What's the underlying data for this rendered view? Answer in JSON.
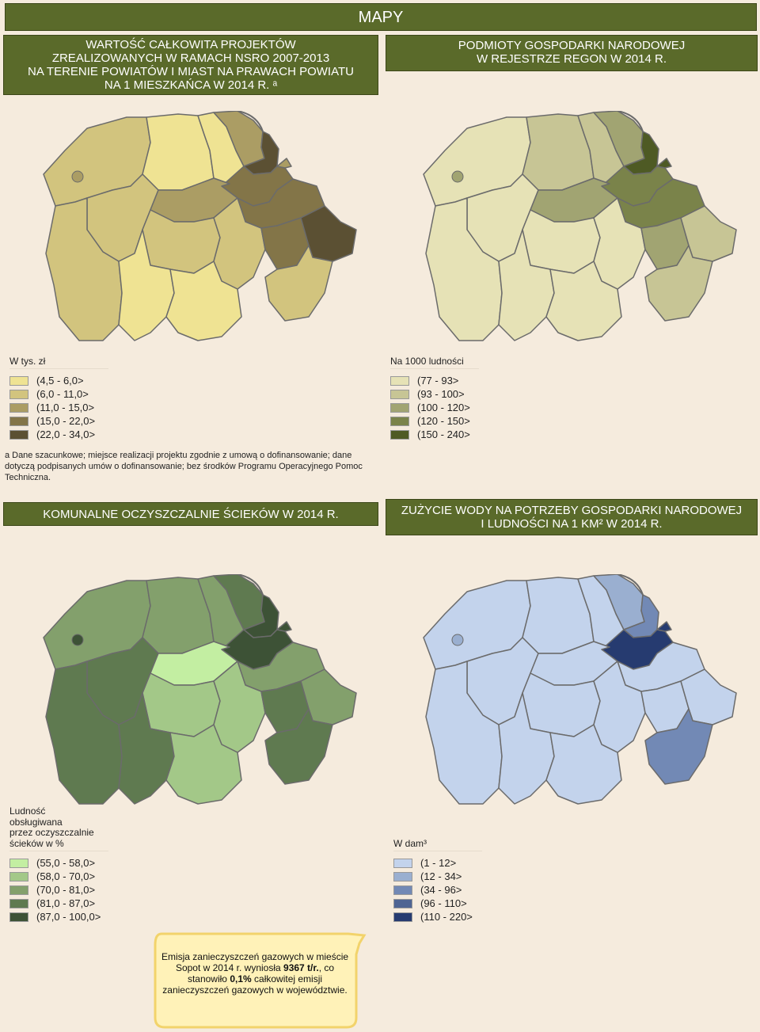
{
  "header": {
    "title": "MAPY"
  },
  "maps": {
    "tl": {
      "title": "WARTOŚĆ CAŁKOWITA PROJEKTÓW\nZREALIZOWANYCH W RAMACH NSRO 2007-2013\nNA TERENIE POWIATÓW I MIAST NA PRAWACH POWIATU\nNA 1 MIESZKAŃCA W 2014 R. ᵃ",
      "legend_title": "W tys. zł",
      "classes": [
        {
          "label": "(4,5 - 6,0>",
          "color": "#efe393"
        },
        {
          "label": "(6,0 - 11,0>",
          "color": "#d2c47e"
        },
        {
          "label": "(11,0 - 15,0>",
          "color": "#ab9d64"
        },
        {
          "label": "(15,0 - 22,0>",
          "color": "#837548"
        },
        {
          "label": "(22,0 - 34,0>",
          "color": "#5b5033"
        }
      ]
    },
    "tr": {
      "title": "PODMIOTY GOSPODARKI NARODOWEJ\nW REJESTRZE REGON W 2014 R.",
      "legend_title": "Na 1000 ludności",
      "classes": [
        {
          "label": "(77 - 93>",
          "color": "#e6e2b6"
        },
        {
          "label": "(93 - 100>",
          "color": "#c7c595"
        },
        {
          "label": "(100 - 120>",
          "color": "#a1a472"
        },
        {
          "label": "(120 - 150>",
          "color": "#7a834a"
        },
        {
          "label": "(150 - 240>",
          "color": "#4e5a24"
        }
      ]
    },
    "bl": {
      "title": "KOMUNALNE OCZYSZCZALNIE ŚCIEKÓW W 2014 R.",
      "legend_title": "Ludność\nobsługiwana\nprzez oczyszczalnie\nścieków w %",
      "classes": [
        {
          "label": "(55,0 - 58,0>",
          "color": "#c3eea2"
        },
        {
          "label": "(58,0 - 70,0>",
          "color": "#a3c888"
        },
        {
          "label": "(70,0 - 81,0>",
          "color": "#83a06c"
        },
        {
          "label": "(81,0 - 87,0>",
          "color": "#5f7a50"
        },
        {
          "label": "(87,0 - 100,0>",
          "color": "#3d5236"
        }
      ]
    },
    "br": {
      "title": "ZUŻYCIE WODY NA POTRZEBY GOSPODARKI NARODOWEJ\nI LUDNOŚCI NA 1 KM² W 2014 R.",
      "legend_title": "W dam³",
      "classes": [
        {
          "label": "(1 - 12>",
          "color": "#c3d3ec"
        },
        {
          "label": "(12 - 34>",
          "color": "#9aafd0"
        },
        {
          "label": "(34 - 96>",
          "color": "#7289b5"
        },
        {
          "label": "(96 - 110>",
          "color": "#4e6493"
        },
        {
          "label": "(110 - 220>",
          "color": "#263b70"
        }
      ]
    }
  },
  "footnote": {
    "marker": "a",
    "text": "Dane szacunkowe; miejsce realizacji projektu zgodnie z umową o dofinansowanie; dane dotyczą podpisanych umów o dofinansowanie; bez środków Programu Operacyjnego Pomoc Techniczna."
  },
  "callout": {
    "text_1": "Emisja zanieczyszczeń gazowych w mieście Sopot w 2014 r. wyniosła ",
    "value_1": "9367 t/r.",
    "text_2": ", co stanowiło ",
    "value_2": "0,1%",
    "text_3": " całkowitej emisji zanieczyszczeń gazowych w województwie."
  },
  "colors": {
    "bar": "#5a6a2a",
    "background": "#f5ebdd",
    "callout_fill": "#fff2b8",
    "callout_border": "#f2d36b"
  }
}
